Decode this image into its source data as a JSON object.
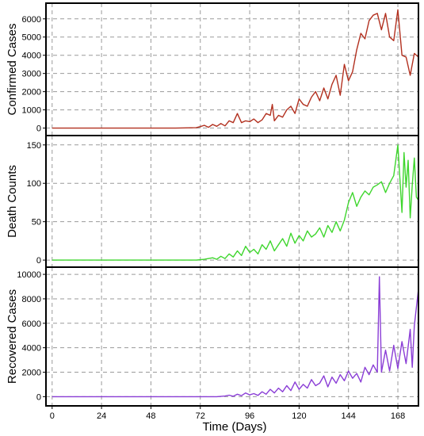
{
  "chart_data": {
    "type": "line",
    "layout": "stacked-panels-shared-x",
    "xlabel": "Time (Days)",
    "x_ticks": [
      0,
      24,
      48,
      72,
      96,
      120,
      144,
      168
    ],
    "xlim": [
      -3,
      178
    ],
    "grid": true,
    "panels": [
      {
        "ylabel": "Confirmed Cases",
        "color": "#b2301f",
        "ylim": [
          -150,
          6600
        ],
        "y_ticks": [
          0,
          1000,
          2000,
          3000,
          4000,
          5000,
          6000
        ],
        "series": {
          "x": [
            0,
            60,
            70,
            72,
            74,
            76,
            78,
            80,
            82,
            84,
            86,
            88,
            90,
            92,
            94,
            96,
            98,
            100,
            102,
            104,
            106,
            107,
            108,
            110,
            112,
            114,
            116,
            118,
            120,
            122,
            124,
            126,
            128,
            130,
            132,
            134,
            136,
            138,
            140,
            142,
            144,
            146,
            148,
            150,
            152,
            154,
            156,
            158,
            160,
            162,
            164,
            166,
            168,
            170,
            172,
            174,
            176,
            178
          ],
          "y": [
            0,
            0,
            20,
            80,
            150,
            40,
            200,
            100,
            250,
            120,
            400,
            300,
            800,
            300,
            400,
            350,
            500,
            300,
            450,
            800,
            700,
            1300,
            400,
            700,
            600,
            1000,
            1200,
            800,
            1600,
            1300,
            1200,
            1700,
            2000,
            1500,
            2200,
            1600,
            2400,
            2900,
            1800,
            3500,
            2600,
            3100,
            4300,
            5200,
            4900,
            5900,
            6200,
            6300,
            5400,
            6300,
            5000,
            4800,
            6500,
            4000,
            3900,
            2900,
            4100,
            3900
          ]
        }
      },
      {
        "ylabel": "Death Counts",
        "color": "#3fd62e",
        "ylim": [
          -3,
          156
        ],
        "y_ticks": [
          0,
          50,
          100,
          150
        ],
        "series": {
          "x": [
            0,
            70,
            74,
            78,
            80,
            82,
            84,
            86,
            88,
            90,
            92,
            94,
            96,
            98,
            100,
            102,
            104,
            106,
            108,
            110,
            112,
            114,
            116,
            118,
            120,
            122,
            124,
            126,
            128,
            130,
            132,
            134,
            136,
            138,
            140,
            142,
            144,
            146,
            148,
            150,
            152,
            154,
            156,
            158,
            160,
            162,
            164,
            166,
            168,
            170,
            171,
            172,
            173,
            174,
            175,
            176,
            177,
            178
          ],
          "y": [
            0,
            0,
            1,
            3,
            1,
            5,
            2,
            8,
            4,
            12,
            6,
            18,
            10,
            14,
            8,
            20,
            14,
            25,
            12,
            20,
            28,
            18,
            35,
            22,
            32,
            25,
            38,
            30,
            34,
            42,
            30,
            45,
            36,
            50,
            38,
            52,
            75,
            88,
            70,
            82,
            90,
            85,
            95,
            98,
            102,
            88,
            100,
            110,
            150,
            62,
            140,
            95,
            130,
            55,
            98,
            133,
            82,
            78
          ]
        }
      },
      {
        "ylabel": "Recovered Cases",
        "color": "#8a3dd6",
        "ylim": [
          -300,
          10200
        ],
        "y_ticks": [
          0,
          2000,
          4000,
          6000,
          8000,
          10000
        ],
        "series": {
          "x": [
            0,
            80,
            84,
            86,
            88,
            90,
            92,
            94,
            96,
            98,
            100,
            102,
            104,
            106,
            108,
            110,
            112,
            114,
            116,
            118,
            120,
            122,
            124,
            126,
            128,
            130,
            132,
            134,
            136,
            138,
            140,
            142,
            144,
            146,
            148,
            150,
            152,
            154,
            156,
            158,
            159,
            160,
            162,
            164,
            166,
            168,
            170,
            172,
            174,
            175,
            176,
            178
          ],
          "y": [
            0,
            0,
            50,
            120,
            30,
            200,
            80,
            300,
            150,
            250,
            100,
            400,
            200,
            600,
            300,
            700,
            400,
            900,
            500,
            1200,
            600,
            1000,
            700,
            1400,
            900,
            1100,
            1700,
            800,
            1600,
            1100,
            1800,
            1300,
            2100,
            1500,
            1900,
            1200,
            2400,
            1800,
            2600,
            2000,
            9800,
            2000,
            3800,
            2100,
            4200,
            2300,
            4500,
            2700,
            5500,
            2400,
            5800,
            8800
          ]
        }
      }
    ]
  }
}
